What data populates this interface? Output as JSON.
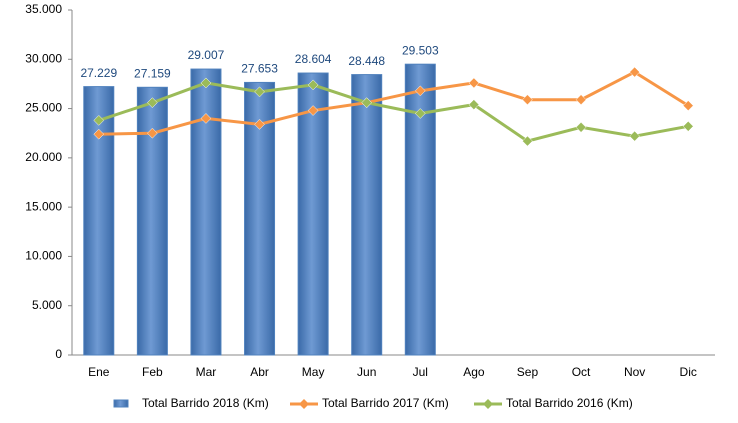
{
  "chart_data": {
    "type": "bar",
    "categories": [
      "Ene",
      "Feb",
      "Mar",
      "Abr",
      "May",
      "Jun",
      "Jul",
      "Ago",
      "Sep",
      "Oct",
      "Nov",
      "Dic"
    ],
    "series": [
      {
        "name": "Total Barrido 2018 (Km)",
        "type": "bar",
        "color": "#4f81bd",
        "values": [
          27229,
          27159,
          29007,
          27653,
          28604,
          28448,
          29503,
          null,
          null,
          null,
          null,
          null
        ],
        "value_labels": [
          "27.229",
          "27.159",
          "29.007",
          "27.653",
          "28.604",
          "28.448",
          "29.503",
          null,
          null,
          null,
          null,
          null
        ]
      },
      {
        "name": "Total Barrido 2017 (Km)",
        "type": "line",
        "color": "#f79646",
        "values": [
          22400,
          22500,
          24000,
          23400,
          24800,
          25600,
          26800,
          27600,
          25900,
          25900,
          28700,
          25300
        ]
      },
      {
        "name": "Total Barrido 2016 (Km)",
        "type": "line",
        "color": "#9bbb59",
        "values": [
          23800,
          25600,
          27600,
          26700,
          27400,
          25600,
          24500,
          25400,
          21700,
          23100,
          22200,
          23200
        ]
      }
    ],
    "ylim": [
      0,
      35000
    ],
    "yticks": [
      0,
      {
        "value": 5000,
        "label": "5.000"
      },
      {
        "value": 10000,
        "label": "10.000"
      },
      {
        "value": 15000,
        "label": "15.000"
      },
      {
        "value": 20000,
        "label": "20.000"
      },
      {
        "value": 25000,
        "label": "25.000"
      },
      {
        "value": 30000,
        "label": "30.000"
      },
      {
        "value": 35000,
        "label": "35.000"
      }
    ],
    "grid": false,
    "legend": "bottom"
  }
}
